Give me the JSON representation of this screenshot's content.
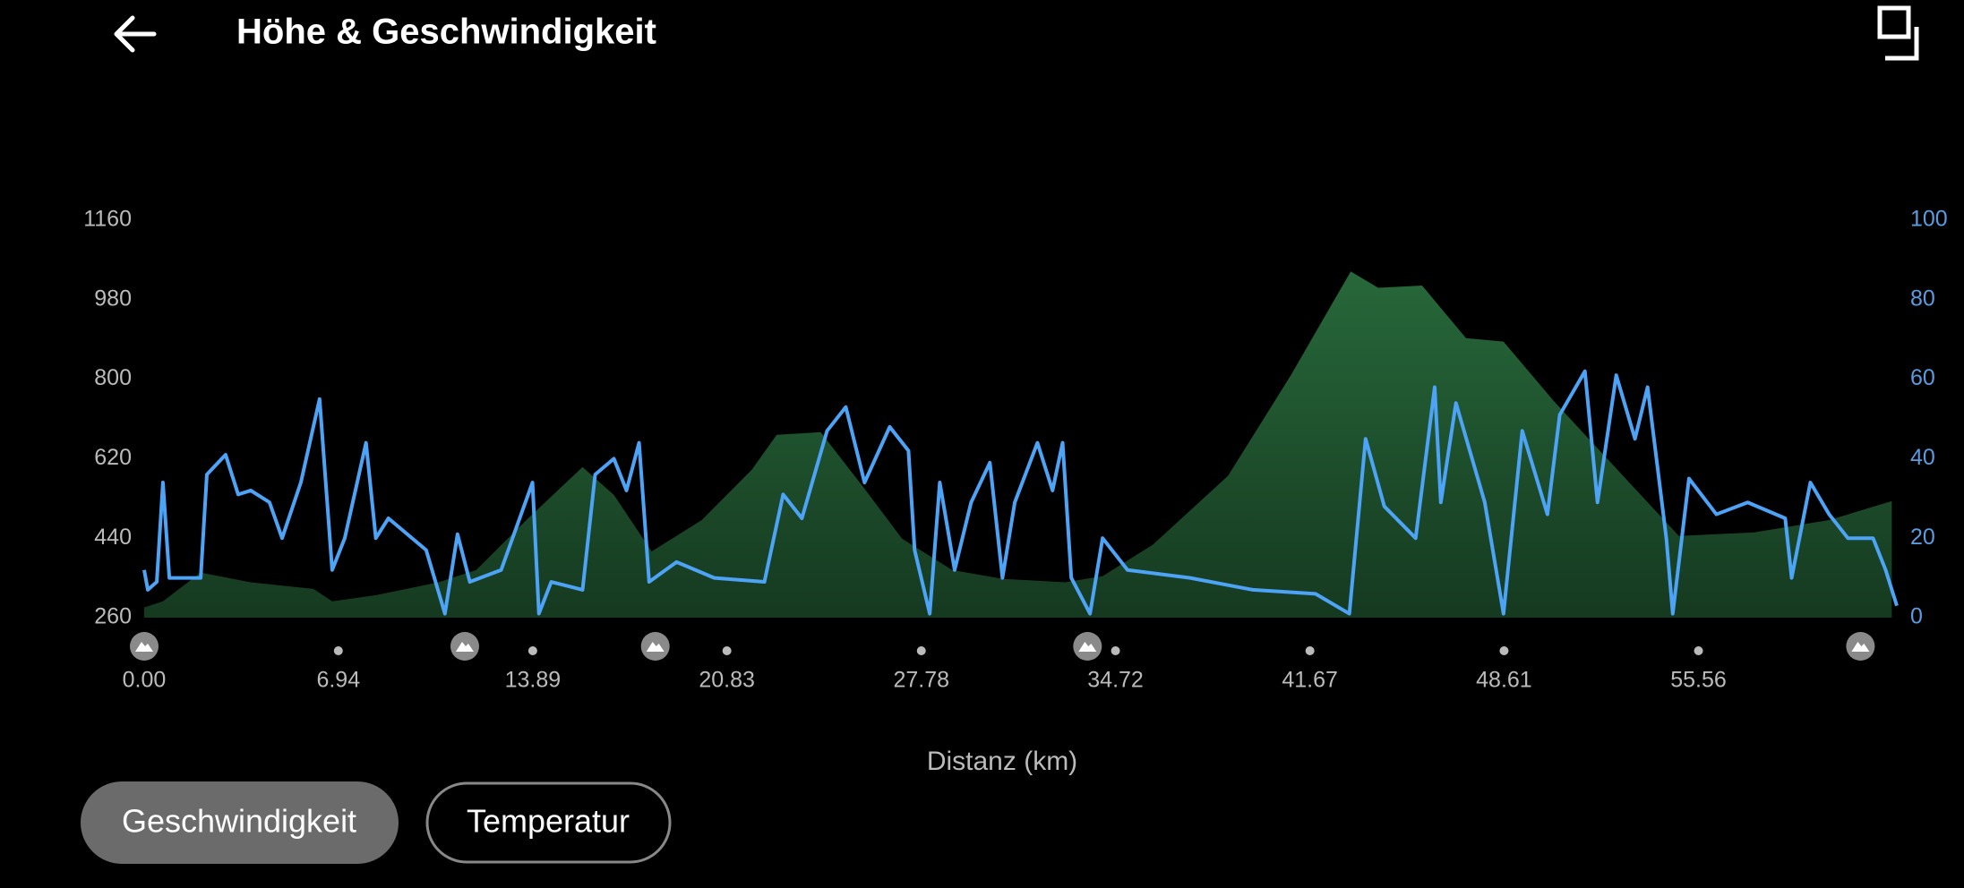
{
  "header": {
    "title": "Höhe & Geschwindigkeit"
  },
  "buttons": [
    "Geschwindigkeit",
    "Temperatur"
  ],
  "chart_data": {
    "type": "line",
    "xlabel": "Distanz (km)",
    "xlim": [
      0,
      62.65
    ],
    "xticks": [
      {
        "value": 0,
        "label": "0.00"
      },
      6.94,
      13.89,
      20.83,
      27.78,
      34.72,
      41.67,
      48.61,
      55.56
    ],
    "ylim": [
      260,
      1160
    ],
    "yticks": [
      260,
      440,
      620,
      800,
      980,
      1160
    ],
    "y2lim": [
      0,
      100
    ],
    "y2ticks": [
      0,
      20,
      40,
      60,
      80,
      100
    ],
    "markers": {
      "x": [
        0,
        11.46,
        18.27,
        33.72,
        61.35
      ]
    },
    "series": [
      {
        "style": "area",
        "color": "#27683a",
        "x": [
          0,
          0.67,
          2.02,
          3.81,
          6.05,
          6.72,
          8.28,
          10.52,
          11.87,
          13.66,
          15.67,
          16.79,
          18.14,
          19.93,
          21.72,
          22.61,
          24.18,
          25.75,
          27.09,
          28.88,
          30.68,
          32.92,
          34.26,
          36.05,
          38.74,
          40.98,
          43.13,
          44.11,
          45.68,
          47.25,
          48.59,
          50.38,
          53.07,
          54.86,
          57.55,
          60.23,
          62.47
        ],
        "values": [
          283,
          297,
          362,
          340,
          325,
          297,
          311,
          340,
          368,
          481,
          601,
          538,
          410,
          481,
          595,
          674,
          680,
          552,
          439,
          368,
          348,
          340,
          354,
          425,
          581,
          808,
          1044,
          1007,
          1012,
          893,
          885,
          751,
          567,
          445,
          453,
          481,
          524
        ]
      },
      {
        "style": "line",
        "color": "#4da3f5",
        "axis": "y2",
        "x": [
          0,
          0.13,
          0.45,
          0.67,
          0.9,
          2.02,
          2.24,
          2.91,
          3.36,
          3.81,
          4.48,
          4.93,
          5.6,
          6.27,
          6.72,
          7.17,
          7.93,
          8.28,
          8.73,
          10.08,
          10.75,
          11.2,
          11.64,
          12.76,
          13.88,
          14.11,
          14.55,
          15.67,
          16.12,
          16.79,
          17.24,
          17.69,
          18.05,
          19.03,
          20.38,
          22.17,
          22.84,
          23.51,
          24.41,
          25.08,
          25.75,
          26.65,
          27.32,
          27.54,
          28.08,
          28.44,
          28.97,
          29.56,
          30.23,
          30.68,
          31.12,
          31.93,
          32.47,
          32.83,
          33.14,
          33.81,
          34.26,
          35.15,
          37.39,
          39.63,
          41.87,
          43.08,
          43.66,
          44.33,
          45.45,
          46.13,
          46.35,
          46.89,
          47.92,
          48.59,
          49.26,
          50.16,
          50.6,
          51.5,
          51.95,
          52.62,
          53.29,
          53.74,
          54.41,
          54.64,
          55.22,
          56.2,
          57.32,
          58.66,
          58.89,
          59.56,
          60.23,
          60.9,
          61.8,
          62.25,
          62.65
        ],
        "values": [
          12,
          7,
          9,
          34,
          10,
          10,
          36,
          41,
          31,
          32,
          29,
          20,
          34,
          55,
          12,
          20,
          44,
          20,
          25,
          17,
          1,
          21,
          9,
          12,
          34,
          1,
          9,
          7,
          36,
          40,
          32,
          44,
          9,
          14,
          10,
          9,
          31,
          25,
          47,
          53,
          34,
          48,
          42,
          17,
          1,
          34,
          12,
          29,
          39,
          10,
          29,
          44,
          32,
          44,
          10,
          1,
          20,
          12,
          10,
          7,
          6,
          1,
          45,
          28,
          20,
          58,
          29,
          54,
          29,
          1,
          47,
          26,
          51,
          62,
          29,
          61,
          45,
          58,
          20,
          1,
          35,
          26,
          29,
          25,
          10,
          34,
          26,
          20,
          20,
          12,
          3
        ]
      }
    ]
  }
}
